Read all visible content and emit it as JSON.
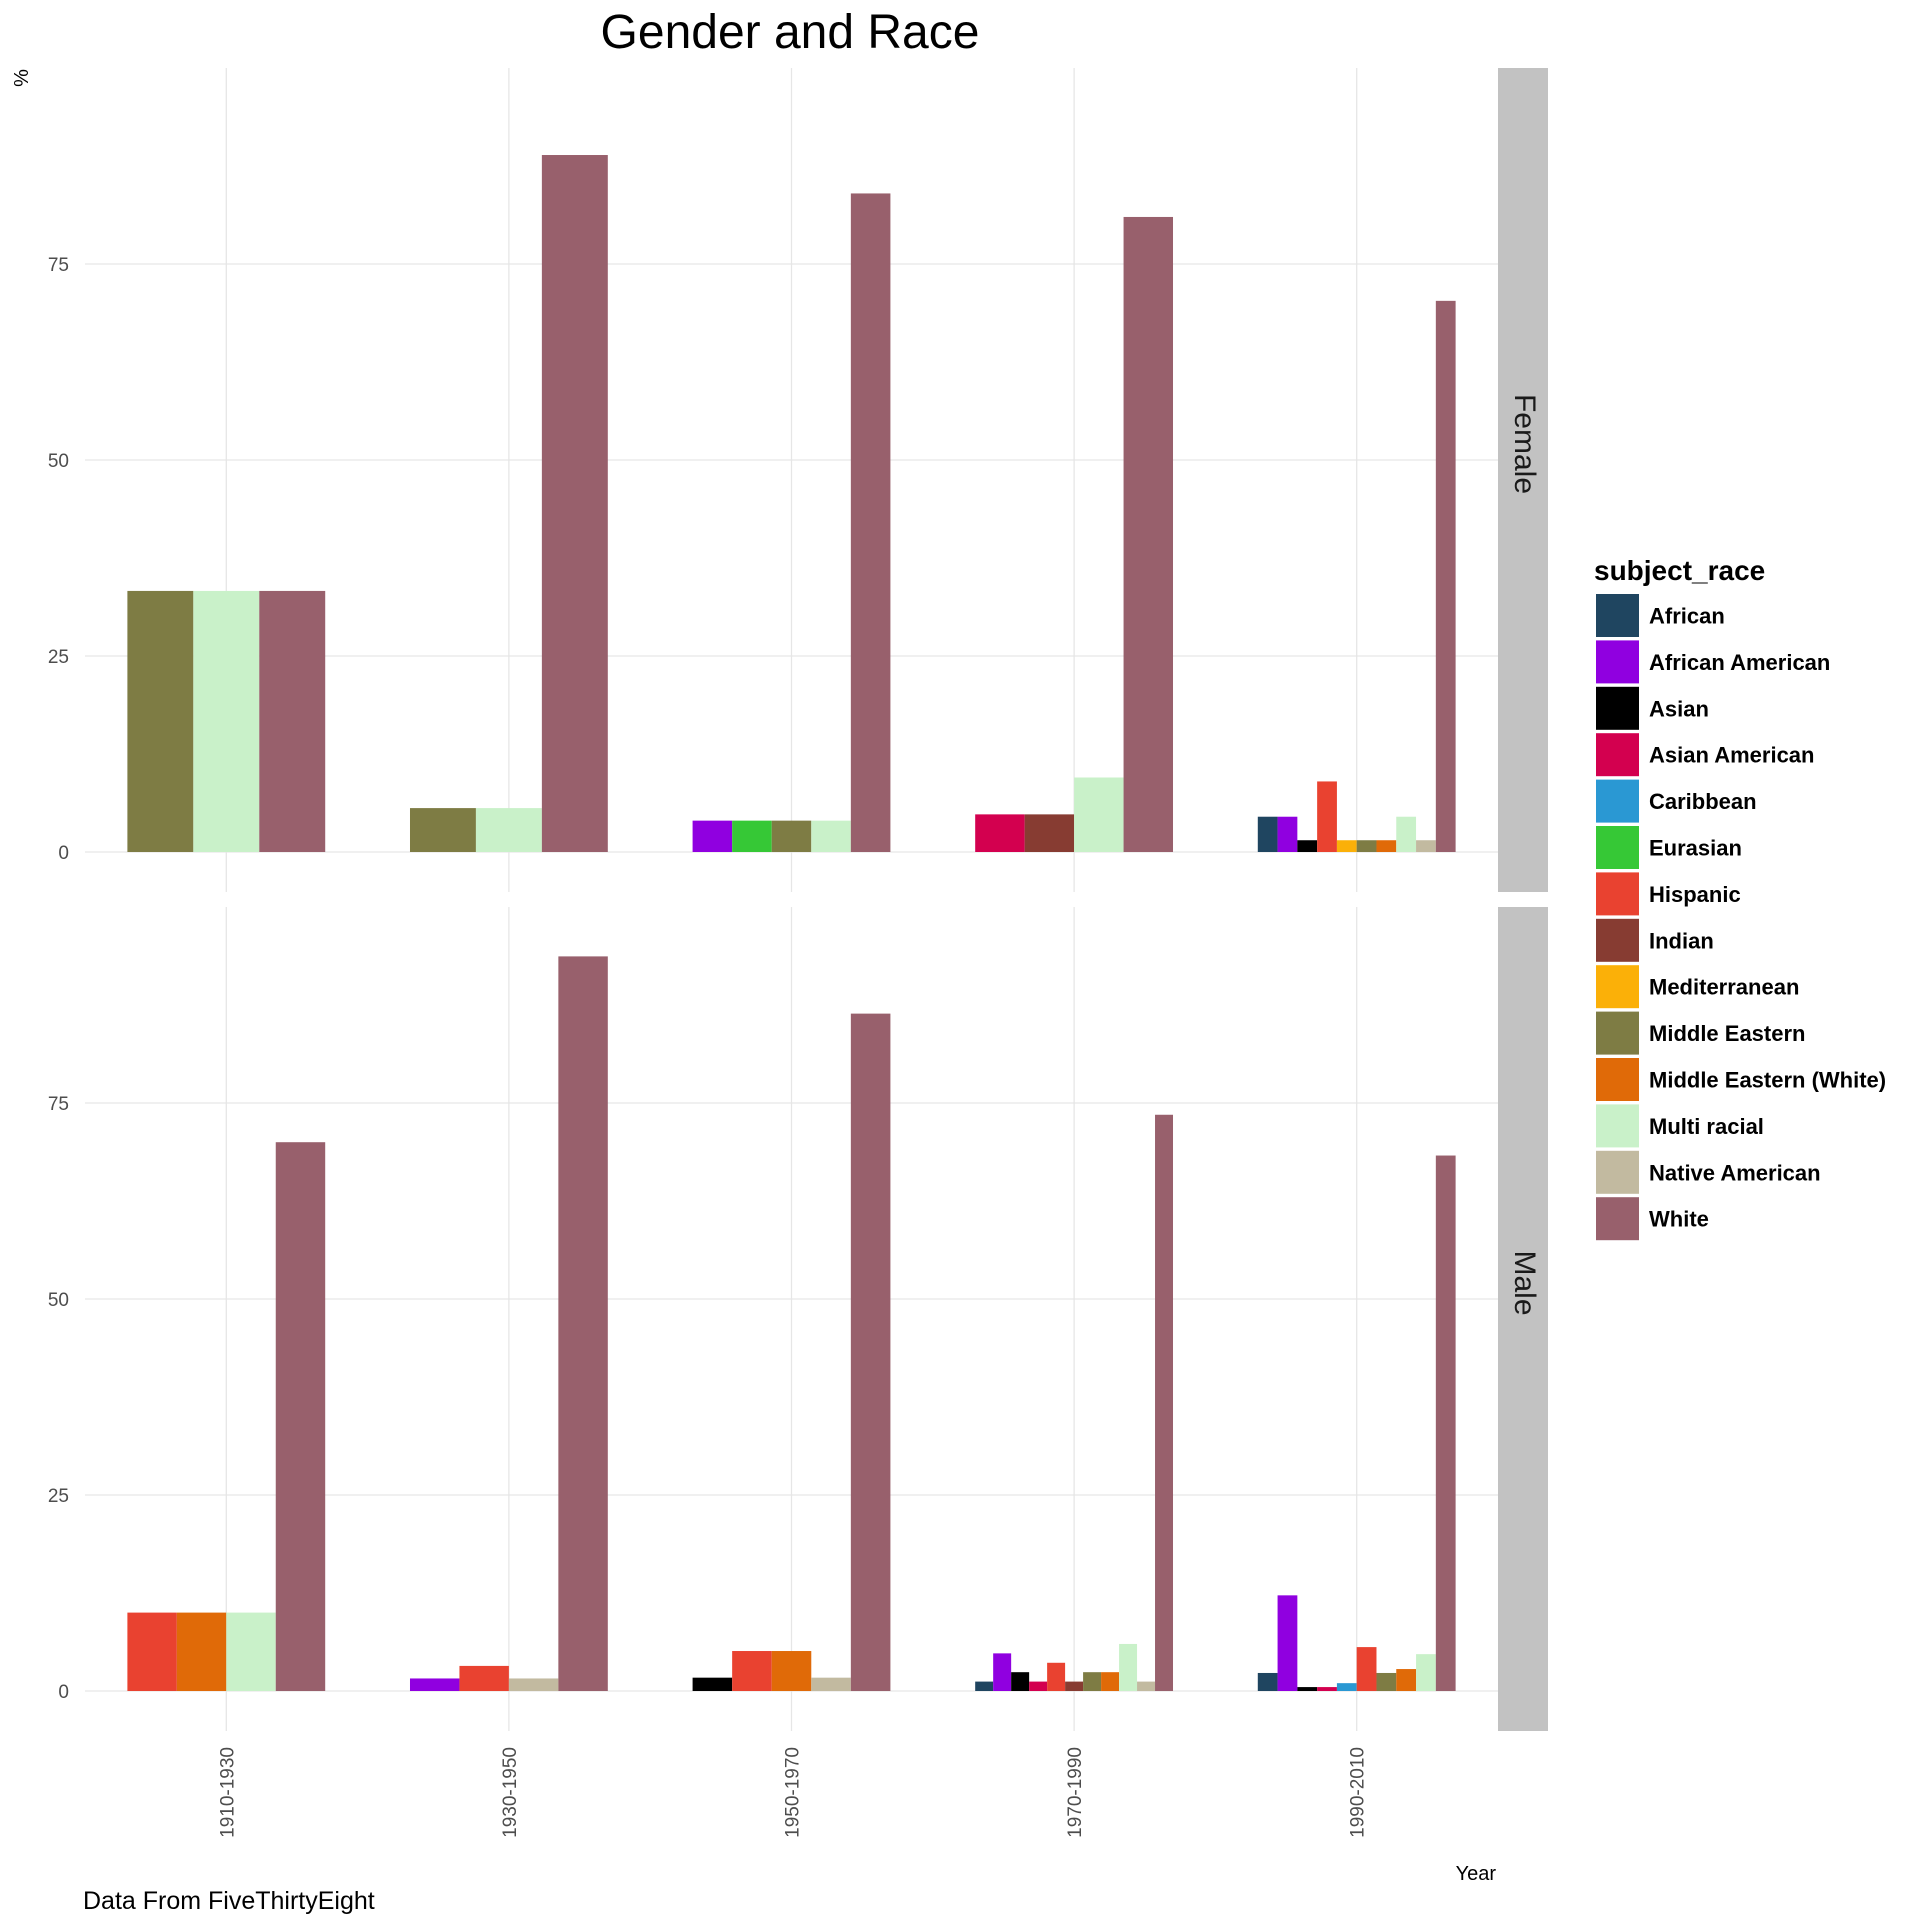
{
  "chart_data": {
    "type": "bar",
    "title": "Gender and Race",
    "xlabel": "Year",
    "ylabel": "%",
    "caption": "Data From FiveThirtyEight",
    "legend_title": "subject_race",
    "legend_position": "right",
    "grid": true,
    "ylim": [
      0,
      100
    ],
    "yticks": [
      0,
      25,
      50,
      75
    ],
    "categories": [
      "1910-1930",
      "1930-1950",
      "1950-1970",
      "1970-1990",
      "1990-2010"
    ],
    "races": [
      {
        "name": "African",
        "color": "#1f4560"
      },
      {
        "name": "African American",
        "color": "#9000e0"
      },
      {
        "name": "Asian",
        "color": "#000000"
      },
      {
        "name": "Asian American",
        "color": "#d3004f"
      },
      {
        "name": "Caribbean",
        "color": "#2a98d3"
      },
      {
        "name": "Eurasian",
        "color": "#36c836"
      },
      {
        "name": "Hispanic",
        "color": "#e94230"
      },
      {
        "name": "Indian",
        "color": "#873c32"
      },
      {
        "name": "Mediterranean",
        "color": "#fbb008"
      },
      {
        "name": "Middle Eastern",
        "color": "#7e7c44"
      },
      {
        "name": "Middle Eastern (White)",
        "color": "#e06a08"
      },
      {
        "name": "Multi racial",
        "color": "#c9f1c9"
      },
      {
        "name": "Native American",
        "color": "#c2baa0"
      },
      {
        "name": "White",
        "color": "#98606c"
      }
    ],
    "facets": [
      {
        "label": "Female",
        "groups": [
          {
            "category": "1910-1930",
            "bars": [
              {
                "race": "Middle Eastern",
                "value": 33.3
              },
              {
                "race": "Multi racial",
                "value": 33.3
              },
              {
                "race": "White",
                "value": 33.3
              }
            ]
          },
          {
            "category": "1930-1950",
            "bars": [
              {
                "race": "Middle Eastern",
                "value": 5.6
              },
              {
                "race": "Multi racial",
                "value": 5.6
              },
              {
                "race": "White",
                "value": 88.9
              }
            ]
          },
          {
            "category": "1950-1970",
            "bars": [
              {
                "race": "African American",
                "value": 4.0
              },
              {
                "race": "Eurasian",
                "value": 4.0
              },
              {
                "race": "Middle Eastern",
                "value": 4.0
              },
              {
                "race": "Multi racial",
                "value": 4.0
              },
              {
                "race": "White",
                "value": 84.0
              }
            ]
          },
          {
            "category": "1970-1990",
            "bars": [
              {
                "race": "Asian American",
                "value": 4.8
              },
              {
                "race": "Indian",
                "value": 4.8
              },
              {
                "race": "Multi racial",
                "value": 9.5
              },
              {
                "race": "White",
                "value": 81.0
              }
            ]
          },
          {
            "category": "1990-2010",
            "bars": [
              {
                "race": "African",
                "value": 4.5
              },
              {
                "race": "African American",
                "value": 4.5
              },
              {
                "race": "Asian",
                "value": 1.5
              },
              {
                "race": "Hispanic",
                "value": 9.0
              },
              {
                "race": "Mediterranean",
                "value": 1.5
              },
              {
                "race": "Middle Eastern",
                "value": 1.5
              },
              {
                "race": "Middle Eastern (White)",
                "value": 1.5
              },
              {
                "race": "Multi racial",
                "value": 4.5
              },
              {
                "race": "Native American",
                "value": 1.5
              },
              {
                "race": "White",
                "value": 70.3
              }
            ]
          }
        ]
      },
      {
        "label": "Male",
        "groups": [
          {
            "category": "1910-1930",
            "bars": [
              {
                "race": "Hispanic",
                "value": 10.0
              },
              {
                "race": "Middle Eastern (White)",
                "value": 10.0
              },
              {
                "race": "Multi racial",
                "value": 10.0
              },
              {
                "race": "White",
                "value": 70.0
              }
            ]
          },
          {
            "category": "1930-1950",
            "bars": [
              {
                "race": "African American",
                "value": 1.6
              },
              {
                "race": "Hispanic",
                "value": 3.2
              },
              {
                "race": "Native American",
                "value": 1.6
              },
              {
                "race": "White",
                "value": 93.7
              }
            ]
          },
          {
            "category": "1950-1970",
            "bars": [
              {
                "race": "Asian",
                "value": 1.7
              },
              {
                "race": "Hispanic",
                "value": 5.1
              },
              {
                "race": "Middle Eastern (White)",
                "value": 5.1
              },
              {
                "race": "Native American",
                "value": 1.7
              },
              {
                "race": "White",
                "value": 86.4
              }
            ]
          },
          {
            "category": "1970-1990",
            "bars": [
              {
                "race": "African",
                "value": 1.2
              },
              {
                "race": "African American",
                "value": 4.8
              },
              {
                "race": "Asian",
                "value": 2.4
              },
              {
                "race": "Asian American",
                "value": 1.2
              },
              {
                "race": "Hispanic",
                "value": 3.6
              },
              {
                "race": "Indian",
                "value": 1.2
              },
              {
                "race": "Middle Eastern",
                "value": 2.4
              },
              {
                "race": "Middle Eastern (White)",
                "value": 2.4
              },
              {
                "race": "Multi racial",
                "value": 6.0
              },
              {
                "race": "Native American",
                "value": 1.2
              },
              {
                "race": "White",
                "value": 73.5
              }
            ]
          },
          {
            "category": "1990-2010",
            "bars": [
              {
                "race": "African",
                "value": 2.3
              },
              {
                "race": "African American",
                "value": 12.2
              },
              {
                "race": "Asian",
                "value": 0.5
              },
              {
                "race": "Asian American",
                "value": 0.5
              },
              {
                "race": "Caribbean",
                "value": 1.0
              },
              {
                "race": "Hispanic",
                "value": 5.6
              },
              {
                "race": "Middle Eastern",
                "value": 2.3
              },
              {
                "race": "Middle Eastern (White)",
                "value": 2.8
              },
              {
                "race": "Multi racial",
                "value": 4.7
              },
              {
                "race": "White",
                "value": 68.3
              }
            ]
          }
        ]
      }
    ]
  }
}
